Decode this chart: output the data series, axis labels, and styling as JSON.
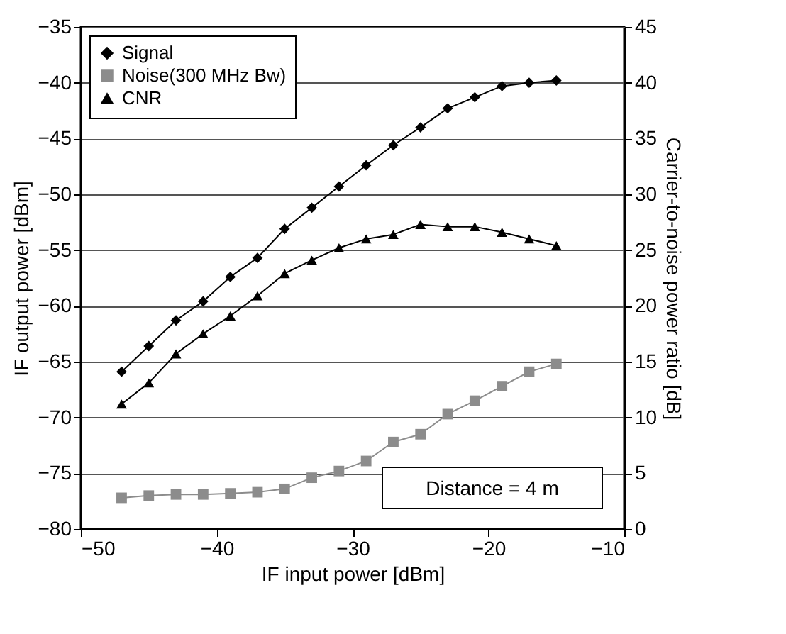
{
  "chart_data": {
    "type": "line",
    "xlabel": "IF input power [dBm]",
    "ylabel": "IF output power [dBm]",
    "y2label": "Carrier-to-noise power ratio [dB]",
    "x": [
      -47,
      -45,
      -43,
      -41,
      -39,
      -37,
      -35,
      -33,
      -31,
      -29,
      -27,
      -25,
      -23,
      -21,
      -19,
      -17,
      -15
    ],
    "series": [
      {
        "name": "Signal",
        "color": "#000000",
        "marker": "diamond",
        "values": [
          -65.9,
          -63.6,
          -61.3,
          -59.6,
          -57.4,
          -55.7,
          -53.1,
          -51.2,
          -49.3,
          -47.4,
          -45.6,
          -44.0,
          -42.3,
          -41.3,
          -40.3,
          -40.0,
          -39.8
        ]
      },
      {
        "name": "Noise(300 MHz Bw)",
        "color": "#8c8c8c",
        "marker": "square",
        "values": [
          -77.2,
          -77.0,
          -76.9,
          -76.9,
          -76.8,
          -76.7,
          -76.4,
          -75.4,
          -74.8,
          -73.9,
          -72.2,
          -71.5,
          -69.7,
          -68.5,
          -67.2,
          -65.9,
          -65.2
        ]
      },
      {
        "name": "CNR",
        "color": "#000000",
        "marker": "triangle",
        "axis": "y2",
        "values": [
          11.2,
          13.1,
          15.7,
          17.5,
          19.1,
          20.9,
          22.9,
          24.1,
          25.2,
          26.0,
          26.4,
          27.3,
          27.1,
          27.1,
          26.6,
          26.0,
          25.4
        ]
      }
    ],
    "xlim": [
      -50,
      -10
    ],
    "xticks": [
      -50,
      -40,
      -30,
      -20,
      -10
    ],
    "ylim": [
      -80,
      -35
    ],
    "yticks": [
      -80,
      -75,
      -70,
      -65,
      -60,
      -55,
      -50,
      -45,
      -40,
      -35
    ],
    "y2lim": [
      0,
      45
    ],
    "y2ticks": [
      0,
      5,
      10,
      15,
      20,
      25,
      30,
      35,
      40,
      45
    ],
    "grid": "y",
    "legend": "top left",
    "line_style": "solid",
    "annotations": [
      "Distance = 4 m"
    ]
  }
}
